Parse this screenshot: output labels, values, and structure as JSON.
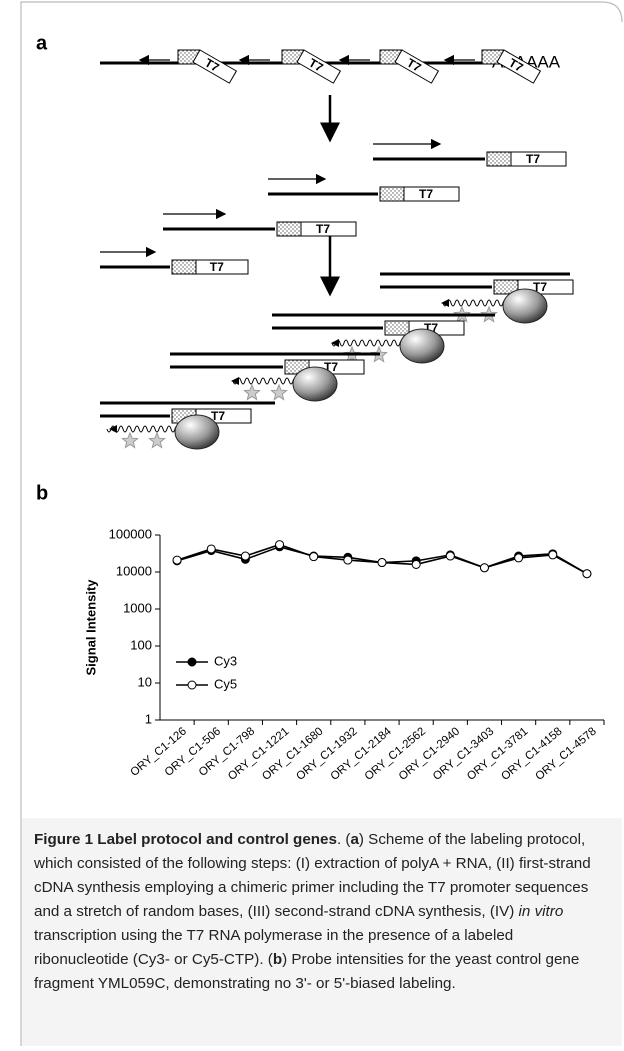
{
  "panel_a": {
    "label": "a",
    "poly_a": "AAAAAA",
    "promoter": "T7"
  },
  "panel_b": {
    "label": "b"
  },
  "chart_data": {
    "type": "line",
    "y_label": "Signal Intensity",
    "log_y": true,
    "categories": [
      "ORY_C1-126",
      "ORY_C1-506",
      "ORY_C1-798",
      "ORY_C1-1221",
      "ORY_C1-1680",
      "ORY_C1-1932",
      "ORY_C1-2184",
      "ORY_C1-2562",
      "ORY_C1-2940",
      "ORY_C1-3403",
      "ORY_C1-3781",
      "ORY_C1-4158",
      "ORY_C1-4578"
    ],
    "series": [
      {
        "name": "Cy3",
        "color": "#000000",
        "marker": "filled",
        "values": [
          20000,
          38000,
          22000,
          48000,
          27000,
          25000,
          18000,
          20000,
          29000,
          13000,
          27000,
          31000,
          9000
        ]
      },
      {
        "name": "Cy5",
        "color": "#000000",
        "marker": "open",
        "values": [
          21000,
          42000,
          27000,
          55000,
          26000,
          21000,
          18000,
          16000,
          27000,
          13000,
          24000,
          29000,
          9000
        ]
      }
    ],
    "ylim": [
      1,
      100000
    ],
    "yticks": [
      1,
      10,
      100,
      1000,
      10000,
      100000
    ],
    "grid": false,
    "legend": "left"
  },
  "caption": {
    "parts": [
      "Figure 1 Label protocol and control genes",
      ". (",
      "a",
      ") Scheme of the labeling protocol, which consisted of the following steps: (I) extraction of polyA + RNA, (II) first-strand cDNA synthesis employing a chimeric primer including the T7 promoter sequences and a stretch of random bases, (III) second-strand cDNA synthesis, (IV) ",
      "in vitro",
      " transcription using the T7 RNA polymerase in the presence of a labeled ribonucleotide (Cy3- or Cy5-CTP). (",
      "b",
      ") Probe intensities for the yeast control gene fragment YML059C, demonstrating no 3'- or 5'-biased labeling."
    ]
  }
}
